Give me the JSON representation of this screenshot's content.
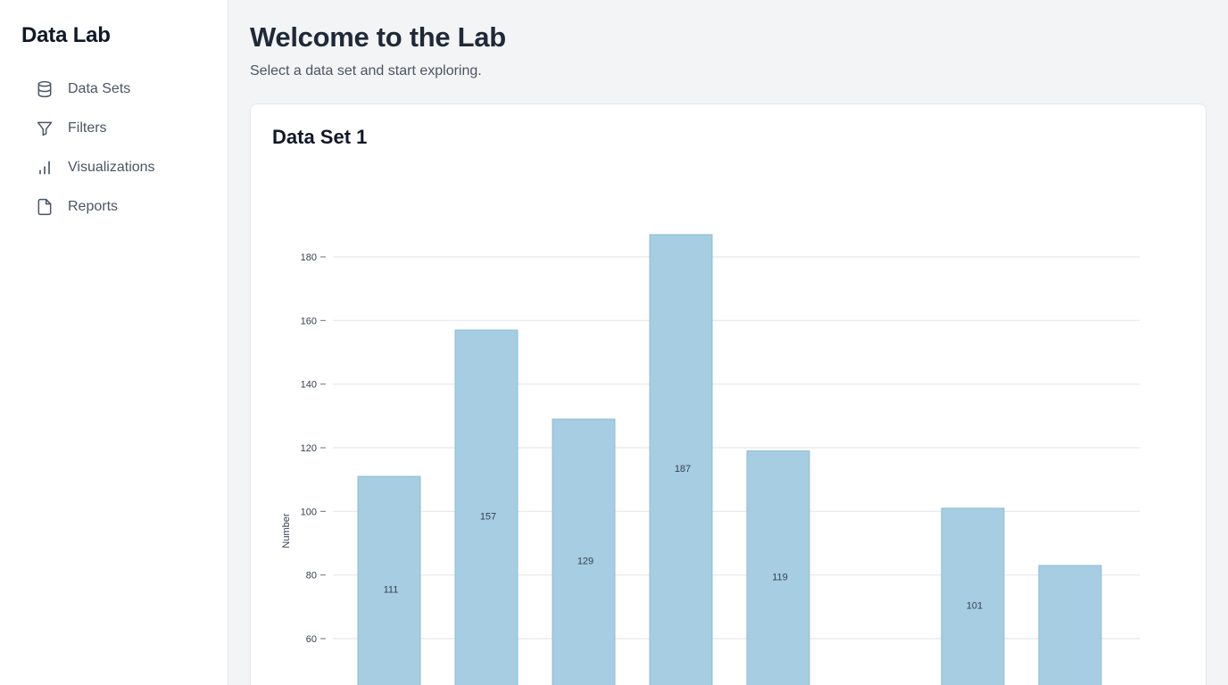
{
  "sidebar": {
    "brand": "Data Lab",
    "items": [
      {
        "label": "Data Sets",
        "icon": "database-icon"
      },
      {
        "label": "Filters",
        "icon": "filter-icon"
      },
      {
        "label": "Visualizations",
        "icon": "bar-chart-icon"
      },
      {
        "label": "Reports",
        "icon": "file-icon"
      }
    ]
  },
  "header": {
    "title": "Welcome to the Lab",
    "subtitle": "Select a data set and start exploring."
  },
  "card": {
    "title": "Data Set 1"
  },
  "chart_data": {
    "type": "bar",
    "ylabel": "Number",
    "yticks": [
      60,
      80,
      100,
      120,
      140,
      160,
      180
    ],
    "ylim": [
      40,
      190
    ],
    "values": [
      111,
      157,
      129,
      187,
      119,
      null,
      101,
      83
    ],
    "data_labels": [
      "111",
      "157",
      "129",
      "187",
      "119",
      "",
      "101",
      ""
    ],
    "grid": true,
    "bar_color": "#a6cde2",
    "bar_stroke": "#8fbcd6"
  }
}
